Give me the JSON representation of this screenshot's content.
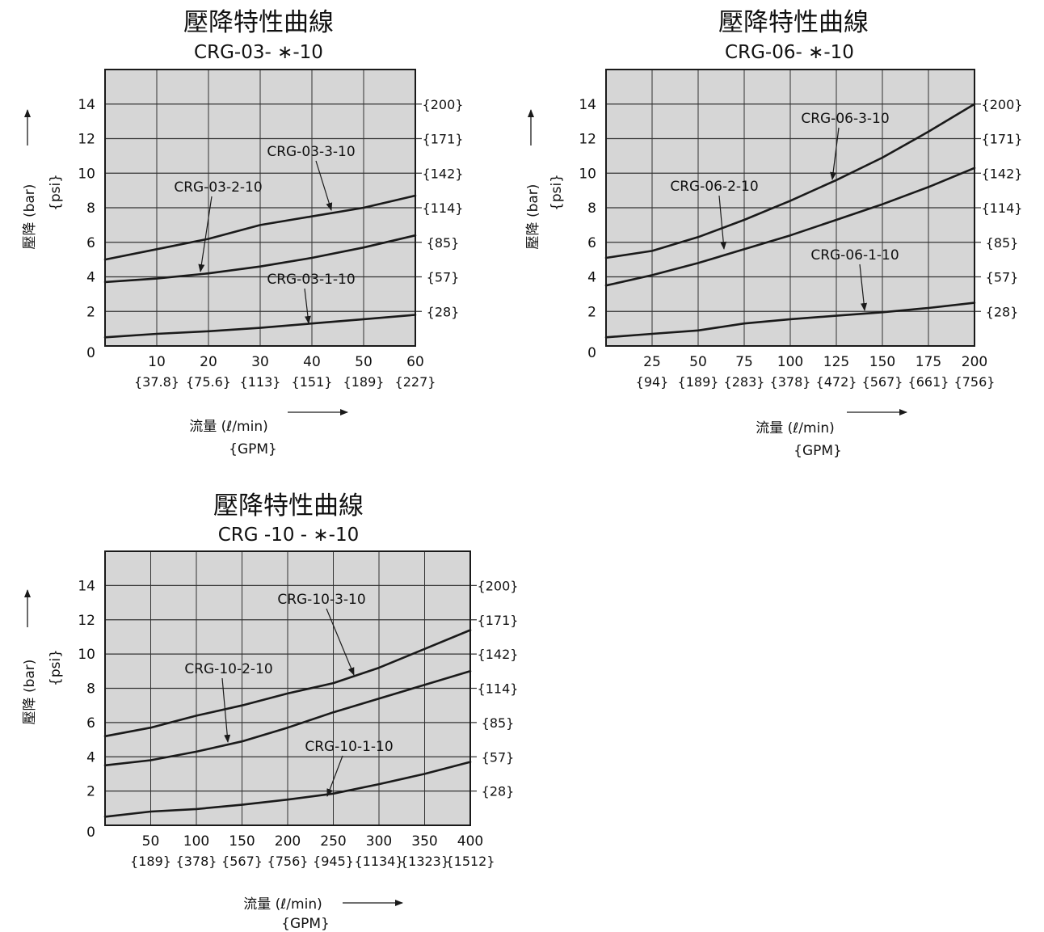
{
  "colors": {
    "ink": "#1a1a1a",
    "grid": "#333333",
    "plot_bg": "#d6d6d6",
    "page_bg": "#ffffff"
  },
  "chart_data": [
    {
      "type": "line",
      "title": "壓降特性曲線",
      "subtitle": "CRG-03- ∗-10",
      "xlabel": "流量 (ℓ/min)",
      "xlabel_secondary": "{GPM}",
      "ylabel": "壓降 (bar)",
      "ylabel_secondary": "{psi}",
      "xlim": [
        0,
        60
      ],
      "ylim": [
        0,
        16
      ],
      "grid": true,
      "x_ticks": [
        "10",
        "20",
        "30",
        "40",
        "50",
        "60"
      ],
      "x_ticks_secondary": [
        "{37.8}",
        "{75.6}",
        "{113}",
        "{151}",
        "{189}",
        "{227}"
      ],
      "y_ticks": [
        "0",
        "2",
        "4",
        "6",
        "8",
        "10",
        "12",
        "14"
      ],
      "y_ticks_secondary": [
        "{28}",
        "{57}",
        "{85}",
        "{114}",
        "{142}",
        "{171}",
        "{200}"
      ],
      "series": [
        {
          "name": "CRG-03-3-10",
          "x": [
            0,
            10,
            20,
            30,
            40,
            50,
            60
          ],
          "y": [
            5.0,
            5.6,
            6.2,
            7.0,
            7.5,
            8.0,
            8.7
          ]
        },
        {
          "name": "CRG-03-2-10",
          "x": [
            0,
            10,
            20,
            30,
            40,
            50,
            60
          ],
          "y": [
            3.7,
            3.9,
            4.2,
            4.6,
            5.1,
            5.7,
            6.4
          ]
        },
        {
          "name": "CRG-03-1-10",
          "x": [
            0,
            10,
            20,
            30,
            40,
            50,
            60
          ],
          "y": [
            0.5,
            0.7,
            0.85,
            1.05,
            1.3,
            1.55,
            1.8
          ]
        }
      ]
    },
    {
      "type": "line",
      "title": "壓降特性曲線",
      "subtitle": "CRG-06- ∗-10",
      "xlabel": "流量 (ℓ/min)",
      "xlabel_secondary": "{GPM}",
      "ylabel": "壓降 (bar)",
      "ylabel_secondary": "{psi}",
      "xlim": [
        0,
        200
      ],
      "ylim": [
        0,
        16
      ],
      "grid": true,
      "x_ticks": [
        "25",
        "50",
        "75",
        "100",
        "125",
        "150",
        "175",
        "200"
      ],
      "x_ticks_secondary": [
        "{94}",
        "{189}",
        "{283}",
        "{378}",
        "{472}",
        "{567}",
        "{661}",
        "{756}"
      ],
      "y_ticks": [
        "0",
        "2",
        "4",
        "6",
        "8",
        "10",
        "12",
        "14"
      ],
      "y_ticks_secondary": [
        "{28}",
        "{57}",
        "{85}",
        "{114}",
        "{142}",
        "{171}",
        "{200}"
      ],
      "series": [
        {
          "name": "CRG-06-3-10",
          "x": [
            0,
            25,
            50,
            75,
            100,
            125,
            150,
            175,
            200
          ],
          "y": [
            5.1,
            5.5,
            6.3,
            7.3,
            8.4,
            9.6,
            10.9,
            12.4,
            14.0
          ]
        },
        {
          "name": "CRG-06-2-10",
          "x": [
            0,
            25,
            50,
            75,
            100,
            125,
            150,
            175,
            200
          ],
          "y": [
            3.5,
            4.1,
            4.8,
            5.6,
            6.4,
            7.3,
            8.2,
            9.2,
            10.3
          ]
        },
        {
          "name": "CRG-06-1-10",
          "x": [
            0,
            25,
            50,
            75,
            100,
            125,
            150,
            175,
            200
          ],
          "y": [
            0.5,
            0.7,
            0.9,
            1.3,
            1.55,
            1.75,
            1.95,
            2.2,
            2.5
          ]
        }
      ]
    },
    {
      "type": "line",
      "title": "壓降特性曲線",
      "subtitle": "CRG -10 - ∗-10",
      "xlabel": "流量 (ℓ/min)",
      "xlabel_secondary": "{GPM}",
      "ylabel": "壓降 (bar)",
      "ylabel_secondary": "{psi}",
      "xlim": [
        0,
        400
      ],
      "ylim": [
        0,
        16
      ],
      "grid": true,
      "x_ticks": [
        "50",
        "100",
        "150",
        "200",
        "250",
        "300",
        "350",
        "400"
      ],
      "x_ticks_secondary": [
        "{189}",
        "{378}",
        "{567}",
        "{756}",
        "{945}",
        "{1134}",
        "{1323}",
        "{1512}"
      ],
      "y_ticks": [
        "0",
        "2",
        "4",
        "6",
        "8",
        "10",
        "12",
        "14"
      ],
      "y_ticks_secondary": [
        "{28}",
        "{57}",
        "{85}",
        "{114}",
        "{142}",
        "{171}",
        "{200}"
      ],
      "series": [
        {
          "name": "CRG-10-3-10",
          "x": [
            0,
            50,
            100,
            150,
            200,
            250,
            300,
            350,
            400
          ],
          "y": [
            5.2,
            5.7,
            6.4,
            7.0,
            7.7,
            8.3,
            9.2,
            10.3,
            11.4
          ]
        },
        {
          "name": "CRG-10-2-10",
          "x": [
            0,
            50,
            100,
            150,
            200,
            250,
            300,
            350,
            400
          ],
          "y": [
            3.5,
            3.8,
            4.3,
            4.9,
            5.7,
            6.6,
            7.4,
            8.2,
            9.0
          ]
        },
        {
          "name": "CRG-10-1-10",
          "x": [
            0,
            50,
            100,
            150,
            200,
            250,
            300,
            350,
            400
          ],
          "y": [
            0.5,
            0.8,
            0.95,
            1.2,
            1.5,
            1.85,
            2.4,
            3.0,
            3.7
          ]
        }
      ]
    }
  ]
}
